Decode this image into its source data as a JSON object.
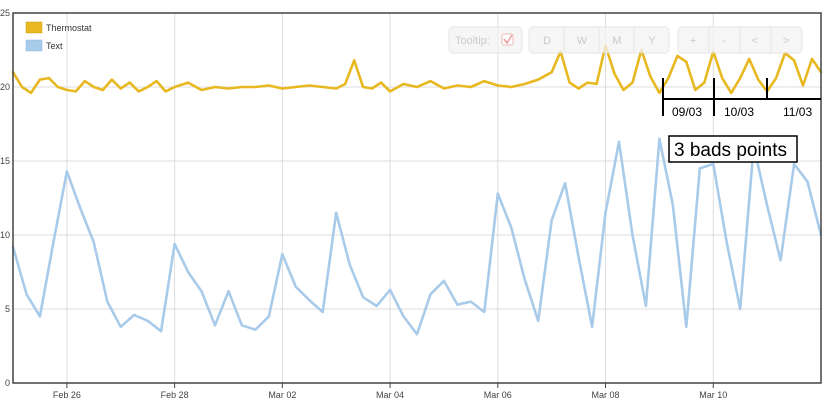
{
  "chart_data": {
    "type": "line",
    "ylim": [
      0,
      25
    ],
    "y_ticks": [
      0,
      5,
      10,
      15,
      20,
      25
    ],
    "x_ticks": [
      "Feb 26",
      "Feb 28",
      "Mar 02",
      "Mar 04",
      "Mar 06",
      "Mar 08",
      "Mar 10"
    ],
    "x_start": "2014-02-25",
    "x_end": "2014-03-12",
    "grid": true,
    "legend_position": "top-left",
    "series": [
      {
        "name": "Thermostat",
        "color": "#e8b820",
        "x": [
          "2014-02-25T00:00",
          "2014-02-25T04:00",
          "2014-02-25T08:00",
          "2014-02-25T12:00",
          "2014-02-25T16:00",
          "2014-02-25T20:00",
          "2014-02-26T00:00",
          "2014-02-26T04:00",
          "2014-02-26T08:00",
          "2014-02-26T12:00",
          "2014-02-26T16:00",
          "2014-02-26T20:00",
          "2014-02-27T00:00",
          "2014-02-27T04:00",
          "2014-02-27T08:00",
          "2014-02-27T12:00",
          "2014-02-27T16:00",
          "2014-02-27T20:00",
          "2014-02-28T00:00",
          "2014-02-28T06:00",
          "2014-02-28T12:00",
          "2014-02-28T18:00",
          "2014-03-01T00:00",
          "2014-03-01T06:00",
          "2014-03-01T12:00",
          "2014-03-01T18:00",
          "2014-03-02T00:00",
          "2014-03-02T06:00",
          "2014-03-02T12:00",
          "2014-03-02T18:00",
          "2014-03-03T00:00",
          "2014-03-03T04:00",
          "2014-03-03T08:00",
          "2014-03-03T12:00",
          "2014-03-03T16:00",
          "2014-03-03T20:00",
          "2014-03-04T00:00",
          "2014-03-04T06:00",
          "2014-03-04T12:00",
          "2014-03-04T18:00",
          "2014-03-05T00:00",
          "2014-03-05T06:00",
          "2014-03-05T12:00",
          "2014-03-05T18:00",
          "2014-03-06T00:00",
          "2014-03-06T06:00",
          "2014-03-06T12:00",
          "2014-03-06T18:00",
          "2014-03-07T00:00",
          "2014-03-07T04:00",
          "2014-03-07T08:00",
          "2014-03-07T12:00",
          "2014-03-07T16:00",
          "2014-03-07T20:00",
          "2014-03-08T00:00",
          "2014-03-08T04:00",
          "2014-03-08T08:00",
          "2014-03-08T12:00",
          "2014-03-08T16:00",
          "2014-03-08T20:00",
          "2014-03-09T00:00",
          "2014-03-09T04:00",
          "2014-03-09T08:00",
          "2014-03-09T12:00",
          "2014-03-09T16:00",
          "2014-03-09T20:00",
          "2014-03-10T00:00",
          "2014-03-10T04:00",
          "2014-03-10T08:00",
          "2014-03-10T12:00",
          "2014-03-10T16:00",
          "2014-03-10T20:00",
          "2014-03-11T00:00",
          "2014-03-11T04:00",
          "2014-03-11T08:00",
          "2014-03-11T12:00",
          "2014-03-11T16:00",
          "2014-03-11T20:00",
          "2014-03-12T00:00"
        ],
        "y": [
          21.0,
          20.0,
          19.6,
          20.5,
          20.6,
          20.0,
          19.8,
          19.7,
          20.4,
          20.0,
          19.8,
          20.5,
          19.9,
          20.3,
          19.7,
          20.0,
          20.4,
          19.7,
          20.0,
          20.3,
          19.8,
          20.0,
          19.9,
          20.0,
          20.0,
          20.1,
          19.9,
          20.0,
          20.1,
          20.0,
          19.9,
          20.2,
          21.8,
          20.0,
          19.9,
          20.3,
          19.7,
          20.2,
          20.0,
          20.4,
          19.9,
          20.1,
          20.0,
          20.4,
          20.1,
          20.0,
          20.2,
          20.5,
          21.0,
          22.4,
          20.3,
          19.9,
          20.3,
          20.2,
          22.8,
          20.9,
          19.8,
          20.3,
          22.5,
          20.7,
          19.6,
          20.6,
          22.1,
          21.7,
          19.8,
          20.3,
          22.4,
          20.6,
          19.6,
          20.6,
          21.9,
          20.5,
          19.7,
          20.6,
          22.3,
          21.8,
          20.1,
          21.9,
          21.0
        ]
      },
      {
        "name": "Text",
        "color": "#a9cbea",
        "x": [
          "2014-02-25T00:00",
          "2014-02-25T06:00",
          "2014-02-25T12:00",
          "2014-02-25T18:00",
          "2014-02-26T00:00",
          "2014-02-26T06:00",
          "2014-02-26T12:00",
          "2014-02-26T18:00",
          "2014-02-27T00:00",
          "2014-02-27T06:00",
          "2014-02-27T12:00",
          "2014-02-27T18:00",
          "2014-02-28T00:00",
          "2014-02-28T06:00",
          "2014-02-28T12:00",
          "2014-02-28T18:00",
          "2014-03-01T00:00",
          "2014-03-01T06:00",
          "2014-03-01T12:00",
          "2014-03-01T18:00",
          "2014-03-02T00:00",
          "2014-03-02T06:00",
          "2014-03-02T12:00",
          "2014-03-02T18:00",
          "2014-03-03T00:00",
          "2014-03-03T06:00",
          "2014-03-03T12:00",
          "2014-03-03T18:00",
          "2014-03-04T00:00",
          "2014-03-04T06:00",
          "2014-03-04T12:00",
          "2014-03-04T18:00",
          "2014-03-05T00:00",
          "2014-03-05T06:00",
          "2014-03-05T12:00",
          "2014-03-05T18:00",
          "2014-03-06T00:00",
          "2014-03-06T06:00",
          "2014-03-06T12:00",
          "2014-03-06T18:00",
          "2014-03-07T00:00",
          "2014-03-07T06:00",
          "2014-03-07T12:00",
          "2014-03-07T18:00",
          "2014-03-08T00:00",
          "2014-03-08T06:00",
          "2014-03-08T12:00",
          "2014-03-08T18:00",
          "2014-03-09T00:00",
          "2014-03-09T06:00",
          "2014-03-09T12:00",
          "2014-03-09T18:00",
          "2014-03-10T00:00",
          "2014-03-10T06:00",
          "2014-03-10T12:00",
          "2014-03-10T18:00",
          "2014-03-11T00:00",
          "2014-03-11T06:00",
          "2014-03-11T12:00",
          "2014-03-11T18:00",
          "2014-03-12T00:00"
        ],
        "y": [
          9.2,
          6.0,
          4.5,
          9.5,
          14.3,
          11.8,
          9.5,
          5.5,
          3.8,
          4.6,
          4.2,
          3.5,
          9.4,
          7.5,
          6.2,
          3.9,
          6.2,
          3.9,
          3.6,
          4.5,
          8.7,
          6.5,
          5.6,
          4.8,
          11.5,
          8.0,
          5.8,
          5.2,
          6.3,
          4.5,
          3.3,
          6.0,
          6.9,
          5.3,
          5.5,
          4.8,
          12.8,
          10.5,
          7.0,
          4.2,
          11.0,
          13.5,
          8.5,
          3.8,
          11.5,
          16.3,
          10.0,
          5.2,
          16.5,
          12.0,
          3.8,
          14.5,
          14.8,
          9.5,
          5.0,
          16.0,
          12.0,
          8.3,
          14.8,
          13.6,
          10.0
        ]
      }
    ],
    "annotations": {
      "date_labels": [
        "09/03",
        "10/03",
        "11/03"
      ],
      "box_text": "3 bads points"
    }
  },
  "legend": {
    "items": [
      "Thermostat",
      "Text"
    ]
  },
  "toolbar": {
    "tooltip_label": "Tooltip:",
    "range_buttons": [
      "D",
      "W",
      "M",
      "Y"
    ],
    "nav_buttons": [
      "+",
      "-",
      "<",
      ">"
    ]
  },
  "colors": {
    "grid": "#dddddd",
    "frame": "#444444"
  }
}
